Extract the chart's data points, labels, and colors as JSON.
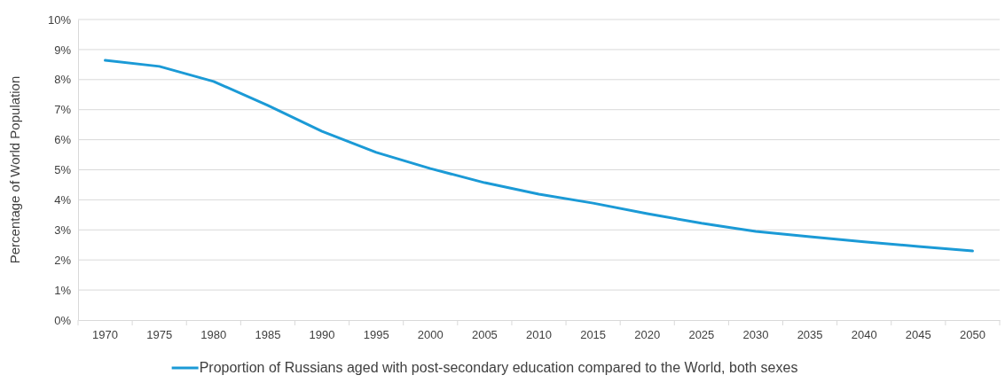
{
  "chart_data": {
    "type": "line",
    "ylabel": "Percentage of World Population",
    "categories": [
      "1970",
      "1975",
      "1980",
      "1985",
      "1990",
      "1995",
      "2000",
      "2005",
      "2010",
      "2015",
      "2020",
      "2025",
      "2030",
      "2035",
      "2040",
      "2045",
      "2050"
    ],
    "series": [
      {
        "name": "Proportion of Russians aged with post-secondary education compared to the World, both sexes",
        "color": "#1b9ad6",
        "values": [
          8.64,
          8.44,
          7.94,
          7.14,
          6.28,
          5.58,
          5.04,
          4.57,
          4.19,
          3.89,
          3.54,
          3.22,
          2.95,
          2.77,
          2.6,
          2.45,
          2.3
        ]
      }
    ],
    "ylim": [
      0,
      10
    ],
    "yticks": [
      {
        "value": 0,
        "label": "0%"
      },
      {
        "value": 1,
        "label": "1%"
      },
      {
        "value": 2,
        "label": "2%"
      },
      {
        "value": 3,
        "label": "3%"
      },
      {
        "value": 4,
        "label": "4%"
      },
      {
        "value": 5,
        "label": "5%"
      },
      {
        "value": 6,
        "label": "6%"
      },
      {
        "value": 7,
        "label": "7%"
      },
      {
        "value": 8,
        "label": "8%"
      },
      {
        "value": 9,
        "label": "9%"
      },
      {
        "value": 10,
        "label": "10%"
      }
    ],
    "grid": "y",
    "legend": "bottom",
    "marker": "none",
    "line_style": "solid"
  }
}
